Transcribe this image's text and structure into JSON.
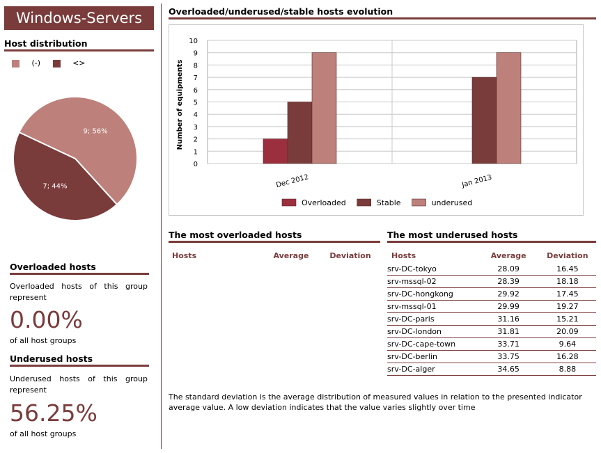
{
  "header": {
    "title": "Windows-Servers"
  },
  "host_distribution": {
    "heading": "Host distribution",
    "legend": [
      {
        "label": "(-)",
        "color": "#bd807a"
      },
      {
        "label": "<>",
        "color": "#7a3b3b"
      }
    ],
    "slices": [
      {
        "label": "9; 56%",
        "value": 9,
        "color": "#bd807a"
      },
      {
        "label": "7; 44%",
        "value": 7,
        "color": "#7a3b3b"
      }
    ]
  },
  "overloaded": {
    "heading": "Overloaded hosts",
    "desc": "Overloaded hosts of this group represent",
    "percent": "0.00%",
    "suffix": "of all host groups"
  },
  "underused": {
    "heading": "Underused hosts",
    "desc": "Underused hosts of this group represent",
    "percent": "56.25%",
    "suffix": "of all host groups"
  },
  "evolution": {
    "heading": "Overloaded/underused/stable hosts evolution"
  },
  "chart_data": {
    "type": "bar",
    "categories": [
      "Dec 2012",
      "Jan 2013"
    ],
    "series": [
      {
        "name": "Overloaded",
        "values": [
          2,
          0
        ],
        "color": "#9b2f3e"
      },
      {
        "name": "Stable",
        "values": [
          5,
          7
        ],
        "color": "#7a3b3b"
      },
      {
        "name": "underused",
        "values": [
          9,
          9
        ],
        "color": "#bd807a"
      }
    ],
    "ylabel": "Number of equipments",
    "ylim": [
      0,
      10
    ],
    "yticks": [
      0,
      1,
      2,
      3,
      4,
      5,
      6,
      7,
      8,
      9,
      10
    ],
    "legend_position": "bottom",
    "grid": true
  },
  "most_overloaded": {
    "heading": "The most overloaded hosts",
    "columns": [
      "Hosts",
      "Average",
      "Deviation"
    ],
    "rows": []
  },
  "most_underused": {
    "heading": "The most underused hosts",
    "columns": [
      "Hosts",
      "Average",
      "Deviation"
    ],
    "rows": [
      {
        "host": "srv-DC-tokyo",
        "average": "28.09",
        "deviation": "16.45"
      },
      {
        "host": "srv-mssql-02",
        "average": "28.39",
        "deviation": "18.18"
      },
      {
        "host": "srv-DC-hongkong",
        "average": "29.92",
        "deviation": "17.45"
      },
      {
        "host": "srv-mssql-01",
        "average": "29.99",
        "deviation": "19.27"
      },
      {
        "host": "srv-DC-paris",
        "average": "31.16",
        "deviation": "15.21"
      },
      {
        "host": "srv-DC-london",
        "average": "31.81",
        "deviation": "20.09"
      },
      {
        "host": "srv-DC-cape-town",
        "average": "33.71",
        "deviation": "9.64"
      },
      {
        "host": "srv-DC-berlin",
        "average": "33.75",
        "deviation": "16.28"
      },
      {
        "host": "srv-DC-alger",
        "average": "34.65",
        "deviation": "8.88"
      }
    ]
  },
  "footnote": "The standard deviation is the average distribution of measured values in relation to the presented indicator average value. A low  deviation indicates that the value varies slightly over time"
}
